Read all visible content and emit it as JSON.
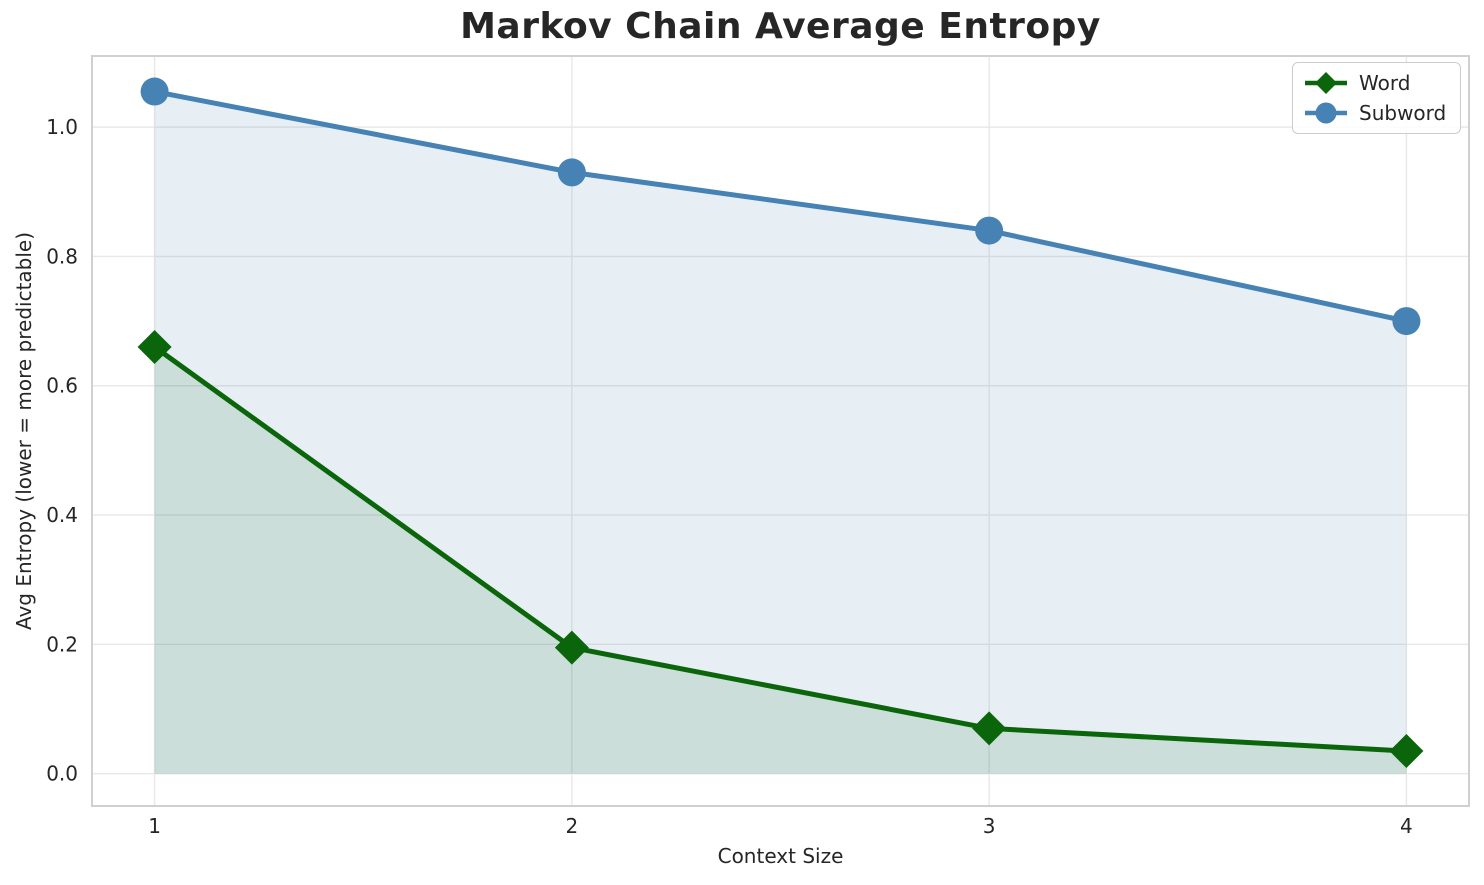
{
  "figure": {
    "title": "Markov Chain Average Entropy"
  },
  "chart_data": {
    "type": "line",
    "title": "Markov Chain Average Entropy",
    "xlabel": "Context Size",
    "ylabel": "Avg Entropy (lower = more predictable)",
    "x": [
      1,
      2,
      3,
      4
    ],
    "series": [
      {
        "name": "Word",
        "values": [
          0.66,
          0.195,
          0.07,
          0.035
        ],
        "color": "#0b660b",
        "marker": "diamond",
        "fill_to_zero": true,
        "fill_opacity": 0.12
      },
      {
        "name": "Subword",
        "values": [
          1.055,
          0.93,
          0.84,
          0.7
        ],
        "color": "#4682b4",
        "marker": "circle",
        "fill_to_zero": true,
        "fill_opacity": 0.13
      }
    ],
    "xlim": [
      0.85,
      4.15
    ],
    "ylim": [
      -0.05,
      1.11
    ],
    "xticks": {
      "values": [
        1,
        2,
        3,
        4
      ],
      "labels": [
        "1",
        "2",
        "3",
        "4"
      ]
    },
    "yticks": {
      "values": [
        0.0,
        0.2,
        0.4,
        0.6,
        0.8,
        1.0
      ],
      "labels": [
        "0.0",
        "0.2",
        "0.4",
        "0.6",
        "0.8",
        "1.0"
      ]
    },
    "grid": true,
    "grid_color": "#e8e8e8",
    "spine_color": "#d0d0d0",
    "legend_position": "upper right",
    "legend": [
      "Word",
      "Subword"
    ]
  }
}
